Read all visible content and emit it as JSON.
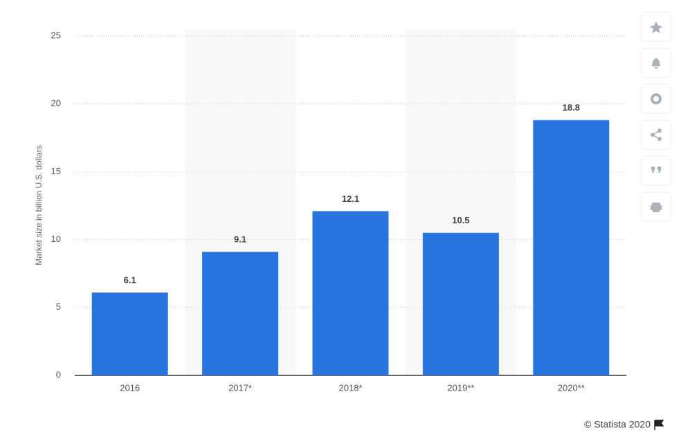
{
  "chart_data": {
    "type": "bar",
    "y_axis_label": "Market size in billion U.S. dollars",
    "categories": [
      "2016",
      "2017*",
      "2018*",
      "2019**",
      "2020**"
    ],
    "values": [
      6.1,
      9.1,
      12.1,
      10.5,
      18.8
    ],
    "color": "#2876dd",
    "ylim": [
      0,
      25
    ],
    "yticks": [
      0,
      5,
      10,
      15,
      20,
      25
    ],
    "grid": true
  },
  "credit": "© Statista 2020"
}
